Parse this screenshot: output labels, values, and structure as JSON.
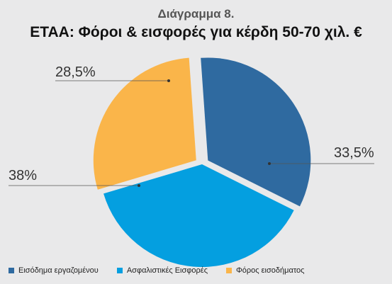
{
  "chart_data": {
    "type": "pie",
    "subtitle": "Διάγραμμα 8.",
    "title": "ΕΤΑΑ: Φόροι & εισφορές για κέρδη 50-70 χιλ. €",
    "slices": [
      {
        "name": "Εισόδημα εργαζομένου",
        "value": 33.5,
        "label": "33,5%",
        "color": "#2f6aa0",
        "exploded": true
      },
      {
        "name": "Ασφαλιστικές Εισφορές",
        "value": 38.0,
        "label": "38%",
        "color": "#049fe0",
        "exploded": false
      },
      {
        "name": "Φόρος εισοδήματος",
        "value": 28.5,
        "label": "28,5%",
        "color": "#fab54a",
        "exploded": true
      }
    ],
    "legend_position": "bottom"
  }
}
